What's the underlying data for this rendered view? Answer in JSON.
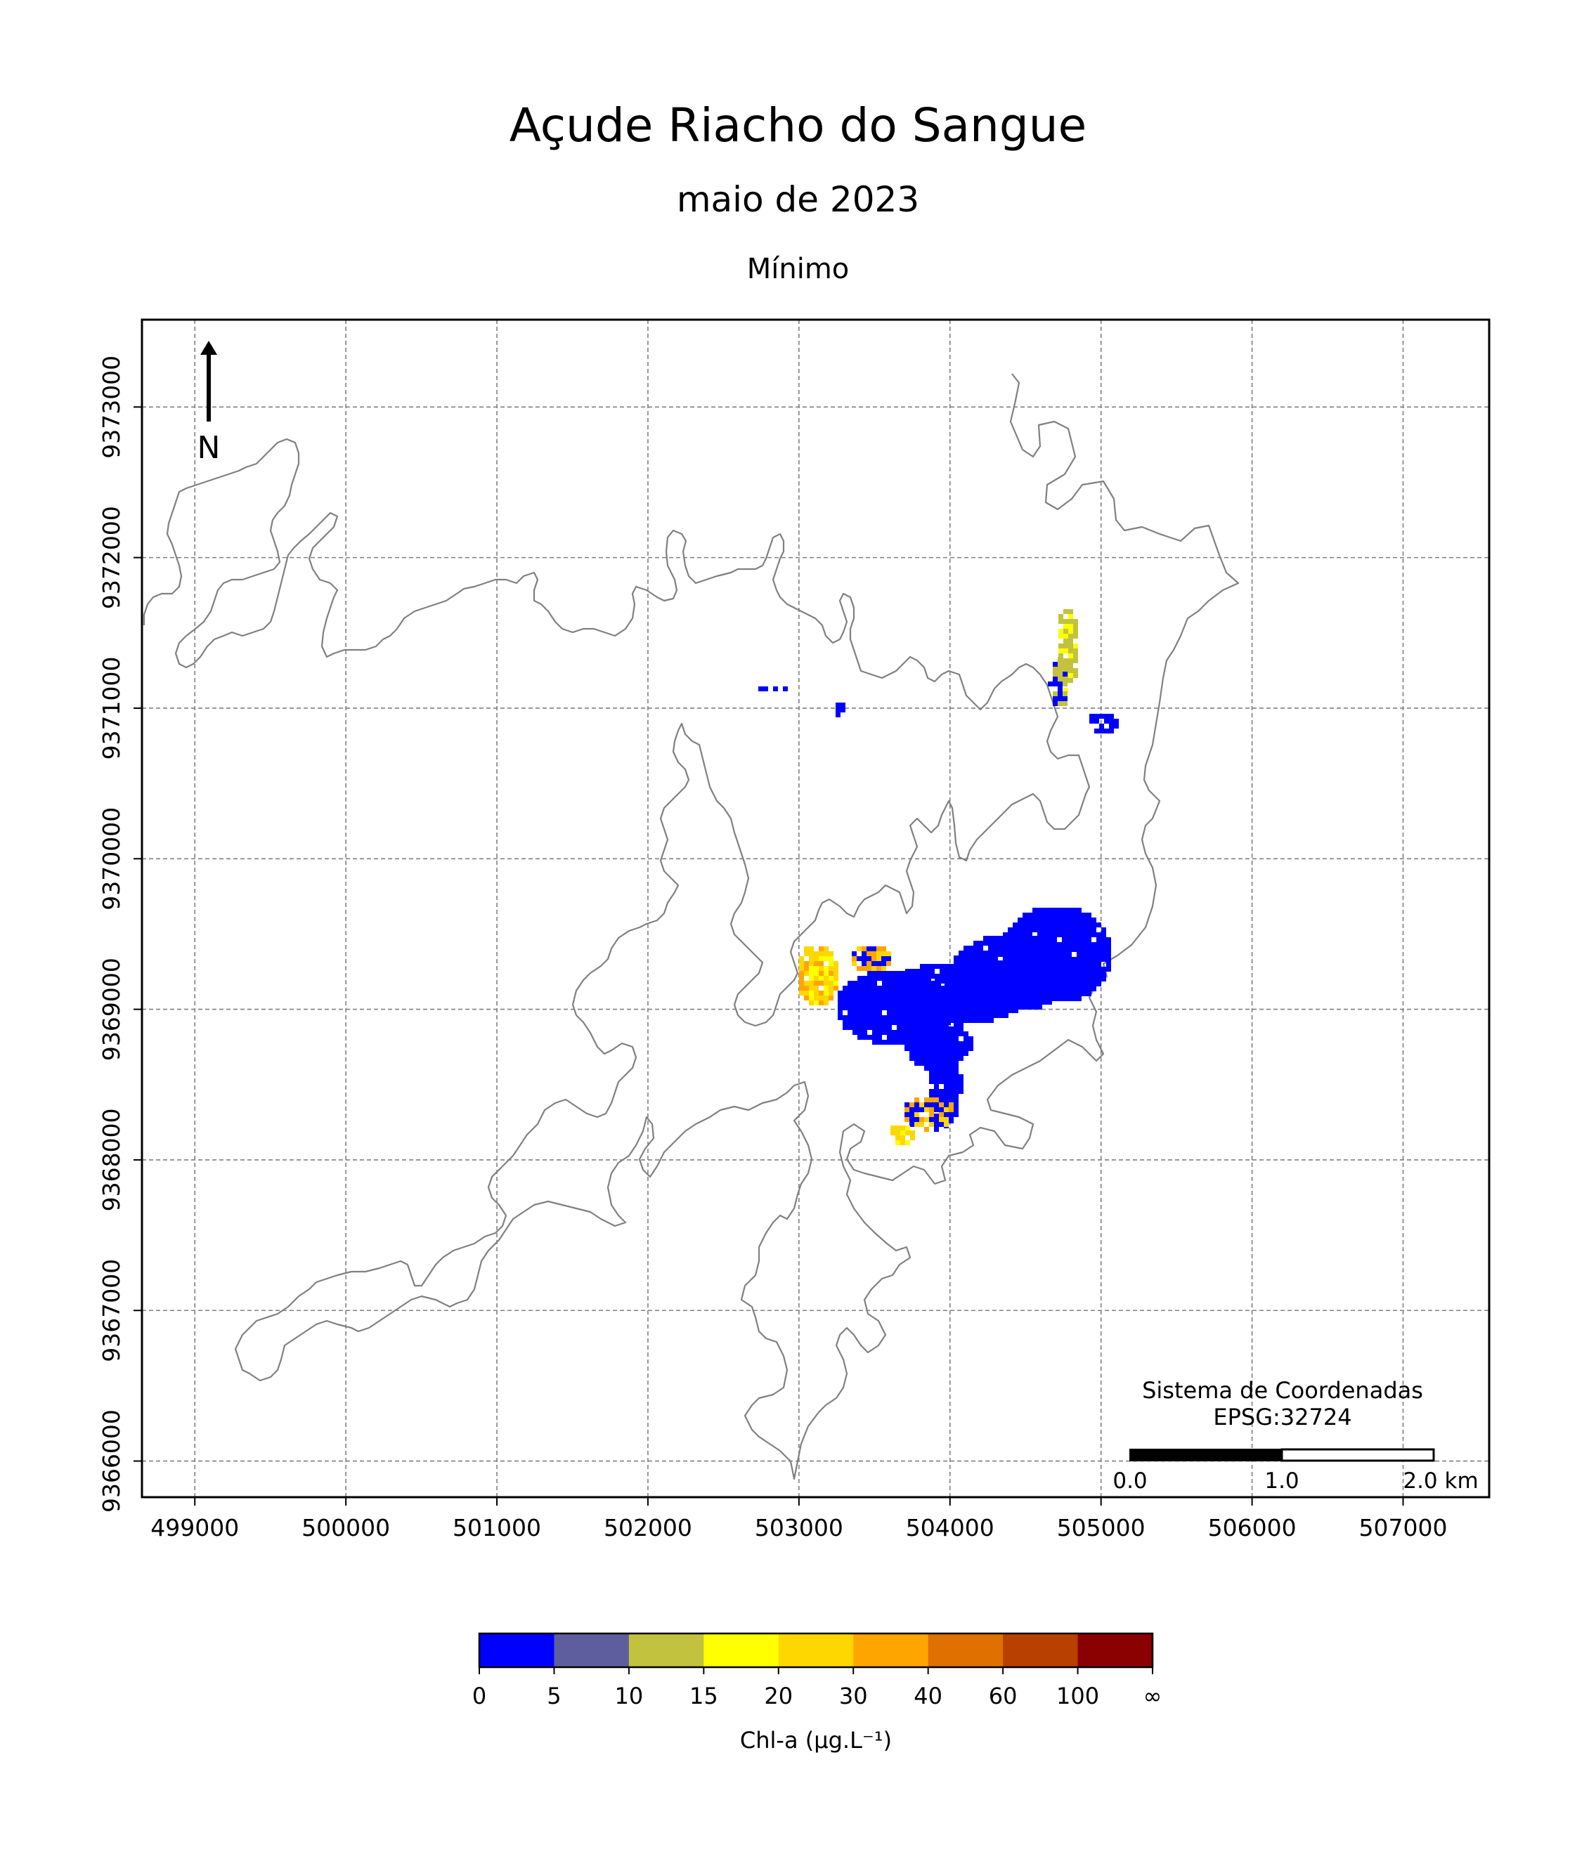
{
  "title": "Açude Riacho do Sangue",
  "subtitle": "maio de 2023",
  "statistic": "Mínimo",
  "north_arrow_label": "N",
  "crs_label_line1": "Sistema de Coordenadas",
  "crs_label_line2": "EPSG:32724",
  "scalebar": {
    "labels": [
      "0.0",
      "1.0",
      "2.0 km"
    ],
    "segments_km": [
      0,
      1,
      2
    ]
  },
  "axes": {
    "x_ticks": [
      "499000",
      "500000",
      "501000",
      "502000",
      "503000",
      "504000",
      "505000",
      "506000",
      "507000"
    ],
    "y_ticks": [
      "9373000",
      "9372000",
      "9371000",
      "9370000",
      "9369000",
      "9368000",
      "9367000",
      "9366000"
    ],
    "xlim": [
      498650,
      507570
    ],
    "ylim": [
      9365760,
      9373580
    ],
    "grid": true,
    "grid_style": "dashed"
  },
  "colorbar": {
    "label": "Chl-a (μg.L⁻¹)",
    "tick_labels": [
      "0",
      "5",
      "10",
      "15",
      "20",
      "30",
      "40",
      "60",
      "100",
      "∞"
    ],
    "colors": [
      "#0000ff",
      "#5e5e9e",
      "#c2c23f",
      "#ffff00",
      "#ffd700",
      "#ffa500",
      "#e07000",
      "#b84000",
      "#8b0000"
    ]
  },
  "colors": {
    "outline": "#808080",
    "grid": "#808080"
  }
}
